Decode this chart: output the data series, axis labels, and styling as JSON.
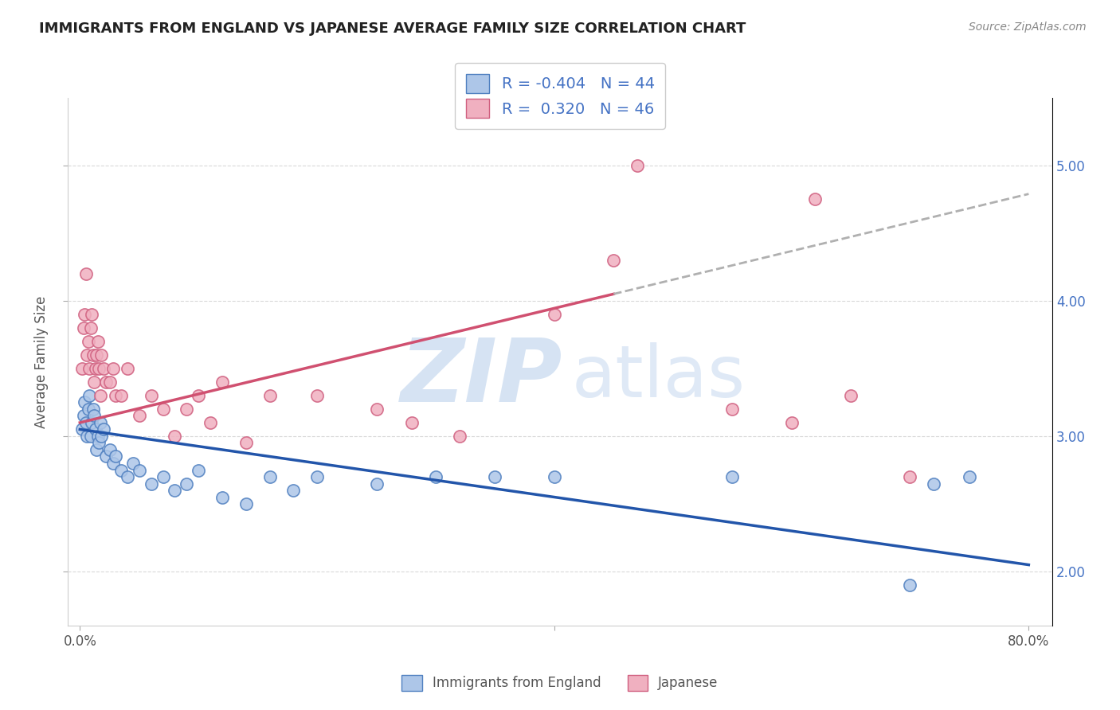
{
  "title": "IMMIGRANTS FROM ENGLAND VS JAPANESE AVERAGE FAMILY SIZE CORRELATION CHART",
  "source": "Source: ZipAtlas.com",
  "ylabel": "Average Family Size",
  "y_ticks": [
    2.0,
    3.0,
    4.0,
    5.0
  ],
  "x_range": [
    0.0,
    80.0
  ],
  "y_range": [
    1.6,
    5.5
  ],
  "england_R": -0.404,
  "england_N": 44,
  "japanese_R": 0.32,
  "japanese_N": 46,
  "england_color": "#adc6e8",
  "england_edge_color": "#5080c0",
  "england_line_color": "#2255aa",
  "japanese_color": "#f0b0c0",
  "japanese_edge_color": "#d06080",
  "japanese_line_color": "#d05070",
  "england_scatter_x": [
    0.2,
    0.3,
    0.4,
    0.5,
    0.6,
    0.7,
    0.8,
    0.9,
    1.0,
    1.1,
    1.2,
    1.3,
    1.4,
    1.5,
    1.6,
    1.7,
    1.8,
    2.0,
    2.2,
    2.5,
    2.8,
    3.0,
    3.5,
    4.0,
    4.5,
    5.0,
    6.0,
    7.0,
    8.0,
    9.0,
    10.0,
    12.0,
    14.0,
    16.0,
    18.0,
    20.0,
    25.0,
    30.0,
    35.0,
    40.0,
    55.0,
    70.0,
    72.0,
    75.0
  ],
  "england_scatter_y": [
    3.05,
    3.15,
    3.25,
    3.1,
    3.0,
    3.2,
    3.3,
    3.0,
    3.1,
    3.2,
    3.15,
    3.05,
    2.9,
    3.0,
    2.95,
    3.1,
    3.0,
    3.05,
    2.85,
    2.9,
    2.8,
    2.85,
    2.75,
    2.7,
    2.8,
    2.75,
    2.65,
    2.7,
    2.6,
    2.65,
    2.75,
    2.55,
    2.5,
    2.7,
    2.6,
    2.7,
    2.65,
    2.7,
    2.7,
    2.7,
    2.7,
    1.9,
    2.65,
    2.7
  ],
  "japanese_scatter_x": [
    0.2,
    0.3,
    0.4,
    0.5,
    0.6,
    0.7,
    0.8,
    0.9,
    1.0,
    1.1,
    1.2,
    1.3,
    1.4,
    1.5,
    1.6,
    1.7,
    1.8,
    2.0,
    2.2,
    2.5,
    2.8,
    3.0,
    3.5,
    4.0,
    5.0,
    6.0,
    7.0,
    8.0,
    9.0,
    10.0,
    11.0,
    12.0,
    14.0,
    16.0,
    20.0,
    25.0,
    28.0,
    32.0,
    40.0,
    45.0,
    47.0,
    55.0,
    60.0,
    62.0,
    65.0,
    70.0
  ],
  "japanese_scatter_y": [
    3.5,
    3.8,
    3.9,
    4.2,
    3.6,
    3.7,
    3.5,
    3.8,
    3.9,
    3.6,
    3.4,
    3.5,
    3.6,
    3.7,
    3.5,
    3.3,
    3.6,
    3.5,
    3.4,
    3.4,
    3.5,
    3.3,
    3.3,
    3.5,
    3.15,
    3.3,
    3.2,
    3.0,
    3.2,
    3.3,
    3.1,
    3.4,
    2.95,
    3.3,
    3.3,
    3.2,
    3.1,
    3.0,
    3.9,
    4.3,
    5.0,
    3.2,
    3.1,
    4.75,
    3.3,
    2.7
  ],
  "background_color": "#ffffff",
  "grid_color": "#d0d0d0",
  "watermark_zip_color": "#b8cce4",
  "watermark_atlas_color": "#9bb8d8"
}
